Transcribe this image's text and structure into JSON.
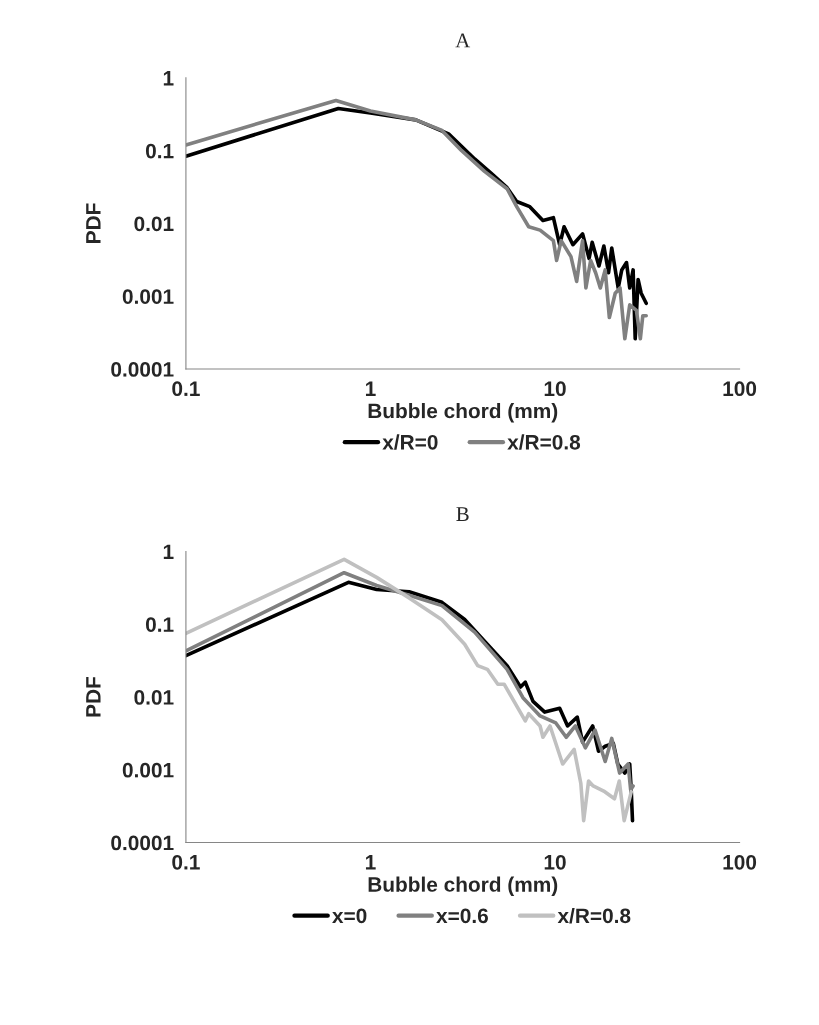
{
  "chart_data": [
    {
      "type": "line",
      "title": "A",
      "xlabel": "Bubble chord (mm)",
      "ylabel": "PDF",
      "log": "xy",
      "xlim": [
        0.1,
        100
      ],
      "ylim": [
        0.0001,
        1
      ],
      "xticks": [
        0.1,
        1,
        10,
        100
      ],
      "yticks": [
        0.0001,
        0.001,
        0.01,
        0.1,
        1
      ],
      "grid": false,
      "legend": "bottom",
      "marker": "none",
      "line_style": "solid",
      "series": [
        {
          "name": "x/R=0",
          "color": "#000000",
          "x": [
            0.1,
            0.67,
            1.0,
            1.76,
            2.65,
            3.67,
            4.5,
            5.5,
            6.2,
            7.3,
            8.6,
            9.8,
            10.6,
            11.2,
            12.5,
            14.1,
            15.3,
            15.9,
            17.3,
            18.4,
            19.5,
            20.3,
            22.0,
            23.0,
            24.4,
            25.4,
            26.5,
            27.2,
            28.2,
            29.3,
            31.2
          ],
          "values": [
            0.084,
            0.38,
            0.33,
            0.265,
            0.17,
            0.077,
            0.049,
            0.031,
            0.02,
            0.017,
            0.011,
            0.012,
            0.0051,
            0.009,
            0.0051,
            0.0072,
            0.0033,
            0.0055,
            0.0026,
            0.0049,
            0.0021,
            0.0046,
            0.0013,
            0.0023,
            0.0029,
            0.0013,
            0.0023,
            0.00026,
            0.0017,
            0.0011,
            0.0008
          ]
        },
        {
          "name": "x/R=0.8",
          "color": "#808080",
          "x": [
            0.1,
            0.65,
            1.0,
            1.76,
            2.44,
            3.12,
            4.15,
            5.5,
            6.2,
            7.2,
            8.3,
            9.8,
            10.2,
            10.8,
            12.2,
            13.1,
            14.1,
            14.7,
            15.6,
            16.6,
            17.6,
            18.7,
            19.7,
            21.2,
            22.5,
            23.9,
            25.4,
            27.6,
            29.0,
            29.9,
            31.2
          ],
          "values": [
            0.12,
            0.49,
            0.35,
            0.265,
            0.19,
            0.1,
            0.052,
            0.03,
            0.017,
            0.009,
            0.0081,
            0.0058,
            0.0031,
            0.0058,
            0.0035,
            0.0016,
            0.0058,
            0.0013,
            0.0031,
            0.0021,
            0.0013,
            0.0023,
            0.00051,
            0.0011,
            0.0013,
            0.00026,
            0.00076,
            0.00064,
            0.00026,
            0.00054,
            0.00054
          ]
        }
      ]
    },
    {
      "type": "line",
      "title": "B",
      "xlabel": "Bubble chord (mm)",
      "ylabel": "PDF",
      "log": "xy",
      "xlim": [
        0.1,
        100
      ],
      "ylim": [
        0.0001,
        1
      ],
      "xticks": [
        0.1,
        1,
        10,
        100
      ],
      "yticks": [
        0.0001,
        0.001,
        0.01,
        0.1,
        1
      ],
      "grid": false,
      "legend": "bottom",
      "marker": "none",
      "line_style": "solid",
      "series": [
        {
          "name": "x=0",
          "color": "#000000",
          "x": [
            0.1,
            0.76,
            1.08,
            1.62,
            2.44,
            3.24,
            4.14,
            5.5,
            6.5,
            6.9,
            7.6,
            8.8,
            10.6,
            11.7,
            13.2,
            14.1,
            16.0,
            17.2,
            18.7,
            20.7,
            21.9,
            23.9,
            25.4,
            25.9,
            26.3
          ],
          "values": [
            0.037,
            0.376,
            0.3,
            0.28,
            0.2,
            0.116,
            0.059,
            0.027,
            0.0137,
            0.016,
            0.0087,
            0.0062,
            0.007,
            0.004,
            0.0053,
            0.0024,
            0.004,
            0.0018,
            0.0021,
            0.0023,
            0.0012,
            0.0009,
            0.0012,
            0.0005,
            0.0002
          ]
        },
        {
          "name": "x=0.6",
          "color": "#808080",
          "x": [
            0.1,
            0.72,
            1.08,
            1.62,
            2.44,
            3.67,
            5.5,
            6.7,
            8.3,
            10.1,
            11.5,
            12.9,
            14.6,
            16.5,
            18.7,
            20.3,
            22.4,
            24.9,
            25.7,
            26.5
          ],
          "values": [
            0.043,
            0.51,
            0.34,
            0.25,
            0.18,
            0.078,
            0.024,
            0.0098,
            0.0055,
            0.0044,
            0.0028,
            0.004,
            0.002,
            0.0035,
            0.0013,
            0.0027,
            0.0009,
            0.0012,
            0.00053,
            0.0006
          ]
        },
        {
          "name": "x/R=0.8",
          "color": "#c0c0c0",
          "x": [
            0.1,
            0.72,
            1.08,
            1.62,
            2.44,
            3.24,
            3.81,
            4.3,
            4.9,
            5.3,
            6.9,
            7.2,
            8.3,
            8.6,
            9.4,
            11.0,
            12.7,
            13.8,
            14.3,
            15.2,
            16.1,
            18.6,
            21.0,
            22.3,
            23.7,
            25.9
          ],
          "values": [
            0.075,
            0.78,
            0.44,
            0.23,
            0.115,
            0.053,
            0.027,
            0.024,
            0.015,
            0.015,
            0.0047,
            0.0059,
            0.004,
            0.0028,
            0.004,
            0.0012,
            0.0019,
            0.00065,
            0.0002,
            0.0007,
            0.0006,
            0.0005,
            0.0004,
            0.0007,
            0.0002,
            0.0005
          ]
        }
      ]
    }
  ]
}
